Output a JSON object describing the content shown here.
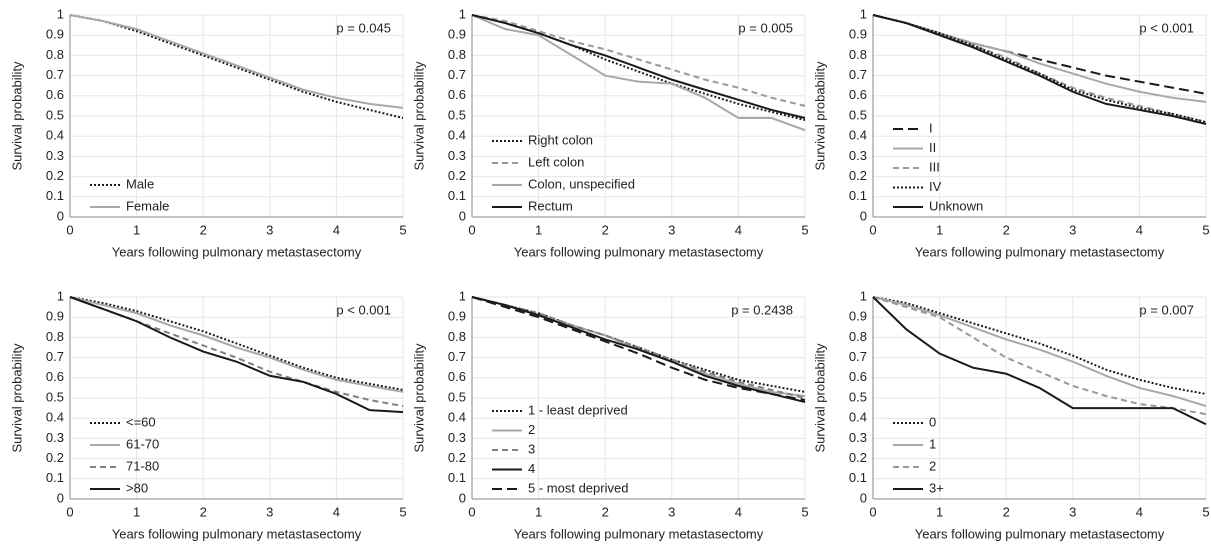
{
  "chart_data": [
    {
      "type": "line",
      "annotation": "p = 0.045",
      "xlabel": "Years following pulmonary metastasectomy",
      "ylabel": "Survival probability",
      "x": [
        0,
        0.5,
        1,
        1.5,
        2,
        2.5,
        3,
        3.5,
        4,
        4.5,
        5
      ],
      "xlim": [
        0,
        5
      ],
      "xticks": [
        0,
        1,
        2,
        3,
        4,
        5
      ],
      "ylim": [
        0,
        1
      ],
      "yticks": [
        0,
        0.1,
        0.2,
        0.3,
        0.4,
        0.5,
        0.6,
        0.7,
        0.8,
        0.9,
        1
      ],
      "grid": true,
      "legend": "lower-left",
      "series": [
        {
          "name": "Male",
          "color": "#1a1a1a",
          "dash": "dotted",
          "values": [
            1,
            0.97,
            0.92,
            0.86,
            0.8,
            0.74,
            0.68,
            0.62,
            0.57,
            0.53,
            0.49
          ]
        },
        {
          "name": "Female",
          "color": "#a8a8a8",
          "dash": "solid",
          "values": [
            1,
            0.97,
            0.93,
            0.87,
            0.81,
            0.75,
            0.69,
            0.63,
            0.59,
            0.56,
            0.54
          ]
        }
      ]
    },
    {
      "type": "line",
      "annotation": "p = 0.005",
      "xlabel": "Years following pulmonary metastasectomy",
      "ylabel": "Survival probability",
      "x": [
        0,
        0.5,
        1,
        1.5,
        2,
        2.5,
        3,
        3.5,
        4,
        4.5,
        5
      ],
      "xlim": [
        0,
        5
      ],
      "xticks": [
        0,
        1,
        2,
        3,
        4,
        5
      ],
      "ylim": [
        0,
        1
      ],
      "yticks": [
        0,
        0.1,
        0.2,
        0.3,
        0.4,
        0.5,
        0.6,
        0.7,
        0.8,
        0.9,
        1
      ],
      "grid": true,
      "legend": "lower-left",
      "series": [
        {
          "name": "Right colon",
          "color": "#1a1a1a",
          "dash": "dotted",
          "values": [
            1,
            0.96,
            0.91,
            0.85,
            0.78,
            0.72,
            0.66,
            0.61,
            0.56,
            0.52,
            0.48
          ]
        },
        {
          "name": "Left colon",
          "color": "#999999",
          "dash": "dashed",
          "values": [
            1,
            0.97,
            0.92,
            0.87,
            0.83,
            0.78,
            0.73,
            0.68,
            0.64,
            0.59,
            0.55
          ]
        },
        {
          "name": "Colon, unspecified",
          "color": "#a8a8a8",
          "dash": "solid",
          "values": [
            1,
            0.93,
            0.9,
            0.8,
            0.7,
            0.67,
            0.66,
            0.59,
            0.49,
            0.49,
            0.43
          ]
        },
        {
          "name": "Rectum",
          "color": "#1a1a1a",
          "dash": "solid",
          "values": [
            1,
            0.96,
            0.91,
            0.85,
            0.8,
            0.74,
            0.68,
            0.63,
            0.58,
            0.53,
            0.49
          ]
        }
      ]
    },
    {
      "type": "line",
      "annotation": "p < 0.001",
      "xlabel": "Years following pulmonary metastasectomy",
      "ylabel": "Survival probability",
      "x": [
        0,
        0.5,
        1,
        1.5,
        2,
        2.5,
        3,
        3.5,
        4,
        4.5,
        5
      ],
      "xlim": [
        0,
        5
      ],
      "xticks": [
        0,
        1,
        2,
        3,
        4,
        5
      ],
      "ylim": [
        0,
        1
      ],
      "yticks": [
        0,
        0.1,
        0.2,
        0.3,
        0.4,
        0.5,
        0.6,
        0.7,
        0.8,
        0.9,
        1
      ],
      "grid": true,
      "legend": "lower-left",
      "series": [
        {
          "name": "I",
          "color": "#1a1a1a",
          "dash": "longdash",
          "values": [
            1,
            0.96,
            0.91,
            0.86,
            0.82,
            0.78,
            0.74,
            0.7,
            0.67,
            0.64,
            0.61
          ]
        },
        {
          "name": "II",
          "color": "#a8a8a8",
          "dash": "solid",
          "values": [
            1,
            0.96,
            0.91,
            0.86,
            0.82,
            0.76,
            0.71,
            0.66,
            0.62,
            0.59,
            0.57
          ]
        },
        {
          "name": "III",
          "color": "#999999",
          "dash": "dashed",
          "values": [
            1,
            0.96,
            0.91,
            0.85,
            0.79,
            0.71,
            0.64,
            0.59,
            0.55,
            0.51,
            0.47
          ]
        },
        {
          "name": "IV",
          "color": "#1a1a1a",
          "dash": "dotted",
          "values": [
            1,
            0.96,
            0.91,
            0.85,
            0.78,
            0.71,
            0.63,
            0.58,
            0.54,
            0.51,
            0.47
          ]
        },
        {
          "name": "Unknown",
          "color": "#1a1a1a",
          "dash": "solid",
          "values": [
            1,
            0.96,
            0.9,
            0.84,
            0.77,
            0.7,
            0.62,
            0.56,
            0.53,
            0.5,
            0.46
          ]
        }
      ]
    },
    {
      "type": "line",
      "annotation": "p < 0.001",
      "xlabel": "Years following pulmonary metastasectomy",
      "ylabel": "Survival probability",
      "x": [
        0,
        0.5,
        1,
        1.5,
        2,
        2.5,
        3,
        3.5,
        4,
        4.5,
        5
      ],
      "xlim": [
        0,
        5
      ],
      "xticks": [
        0,
        1,
        2,
        3,
        4,
        5
      ],
      "ylim": [
        0,
        1
      ],
      "yticks": [
        0,
        0.1,
        0.2,
        0.3,
        0.4,
        0.5,
        0.6,
        0.7,
        0.8,
        0.9,
        1
      ],
      "grid": true,
      "legend": "lower-left",
      "series": [
        {
          "name": "<=60",
          "color": "#1a1a1a",
          "dash": "dotted",
          "values": [
            1,
            0.97,
            0.93,
            0.88,
            0.83,
            0.77,
            0.71,
            0.65,
            0.6,
            0.57,
            0.54
          ]
        },
        {
          "name": "61-70",
          "color": "#a8a8a8",
          "dash": "solid",
          "values": [
            1,
            0.96,
            0.92,
            0.86,
            0.81,
            0.75,
            0.7,
            0.64,
            0.59,
            0.56,
            0.53
          ]
        },
        {
          "name": "71-80",
          "color": "#808080",
          "dash": "dashed",
          "values": [
            1,
            0.94,
            0.88,
            0.82,
            0.76,
            0.7,
            0.63,
            0.58,
            0.53,
            0.49,
            0.46
          ]
        },
        {
          "name": ">80",
          "color": "#1a1a1a",
          "dash": "solid",
          "values": [
            1,
            0.94,
            0.88,
            0.8,
            0.73,
            0.68,
            0.61,
            0.58,
            0.52,
            0.44,
            0.43
          ]
        }
      ]
    },
    {
      "type": "line",
      "annotation": "p = 0.2438",
      "xlabel": "Years following pulmonary metastasectomy",
      "ylabel": "Survival probability",
      "x": [
        0,
        0.5,
        1,
        1.5,
        2,
        2.5,
        3,
        3.5,
        4,
        4.5,
        5
      ],
      "xlim": [
        0,
        5
      ],
      "xticks": [
        0,
        1,
        2,
        3,
        4,
        5
      ],
      "ylim": [
        0,
        1
      ],
      "yticks": [
        0,
        0.1,
        0.2,
        0.3,
        0.4,
        0.5,
        0.6,
        0.7,
        0.8,
        0.9,
        1
      ],
      "grid": true,
      "legend": "lower-left",
      "series": [
        {
          "name": "1 - least deprived",
          "color": "#1a1a1a",
          "dash": "dotted",
          "values": [
            1,
            0.96,
            0.92,
            0.86,
            0.81,
            0.75,
            0.69,
            0.64,
            0.59,
            0.56,
            0.53
          ]
        },
        {
          "name": "2",
          "color": "#a8a8a8",
          "dash": "solid",
          "values": [
            1,
            0.96,
            0.91,
            0.86,
            0.81,
            0.74,
            0.68,
            0.62,
            0.57,
            0.53,
            0.51
          ]
        },
        {
          "name": "3",
          "color": "#808080",
          "dash": "dashed",
          "values": [
            1,
            0.96,
            0.92,
            0.86,
            0.81,
            0.75,
            0.69,
            0.63,
            0.58,
            0.54,
            0.5
          ]
        },
        {
          "name": "4",
          "color": "#1a1a1a",
          "dash": "solid",
          "values": [
            1,
            0.96,
            0.91,
            0.85,
            0.79,
            0.74,
            0.68,
            0.61,
            0.56,
            0.52,
            0.48
          ]
        },
        {
          "name": "5 - most deprived",
          "color": "#1a1a1a",
          "dash": "longdash",
          "values": [
            1,
            0.95,
            0.9,
            0.84,
            0.78,
            0.72,
            0.65,
            0.59,
            0.55,
            0.52,
            0.49
          ]
        }
      ]
    },
    {
      "type": "line",
      "annotation": "p = 0.007",
      "xlabel": "Years following pulmonary metastasectomy",
      "ylabel": "Survival probability",
      "x": [
        0,
        0.5,
        1,
        1.5,
        2,
        2.5,
        3,
        3.5,
        4,
        4.5,
        5
      ],
      "xlim": [
        0,
        5
      ],
      "xticks": [
        0,
        1,
        2,
        3,
        4,
        5
      ],
      "ylim": [
        0,
        1
      ],
      "yticks": [
        0,
        0.1,
        0.2,
        0.3,
        0.4,
        0.5,
        0.6,
        0.7,
        0.8,
        0.9,
        1
      ],
      "grid": true,
      "legend": "lower-left",
      "series": [
        {
          "name": "0",
          "color": "#1a1a1a",
          "dash": "dotted",
          "values": [
            1,
            0.97,
            0.92,
            0.87,
            0.82,
            0.77,
            0.71,
            0.64,
            0.59,
            0.55,
            0.52
          ]
        },
        {
          "name": "1",
          "color": "#a8a8a8",
          "dash": "solid",
          "values": [
            1,
            0.96,
            0.91,
            0.85,
            0.79,
            0.74,
            0.68,
            0.61,
            0.55,
            0.51,
            0.46
          ]
        },
        {
          "name": "2",
          "color": "#999999",
          "dash": "dashed",
          "values": [
            1,
            0.95,
            0.9,
            0.8,
            0.7,
            0.63,
            0.56,
            0.51,
            0.47,
            0.45,
            0.42
          ]
        },
        {
          "name": "3+",
          "color": "#1a1a1a",
          "dash": "solid",
          "values": [
            1,
            0.84,
            0.72,
            0.65,
            0.62,
            0.55,
            0.45,
            0.45,
            0.45,
            0.45,
            0.37
          ]
        }
      ]
    }
  ]
}
